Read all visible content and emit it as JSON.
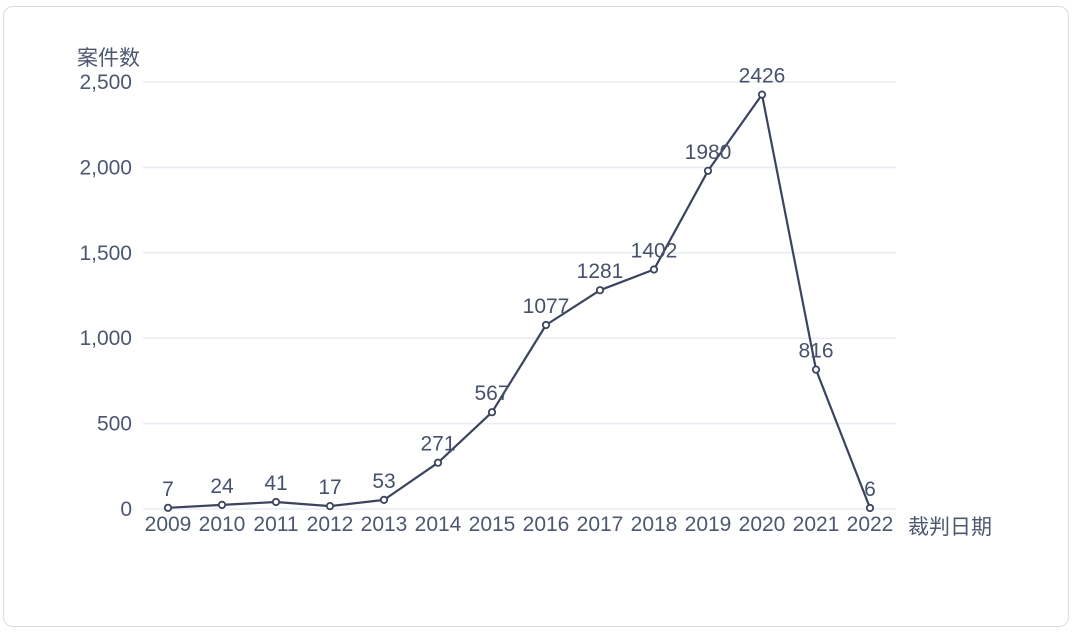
{
  "chart_data": {
    "type": "line",
    "title": "",
    "ylabel": "案件数",
    "xlabel": "裁判日期",
    "categories": [
      "2009",
      "2010",
      "2011",
      "2012",
      "2013",
      "2014",
      "2015",
      "2016",
      "2017",
      "2018",
      "2019",
      "2020",
      "2021",
      "2022"
    ],
    "values": [
      7,
      24,
      41,
      17,
      53,
      271,
      567,
      1077,
      1281,
      1402,
      1980,
      2426,
      816,
      6
    ],
    "data_labels": [
      "7",
      "24",
      "41",
      "17",
      "53",
      "271",
      "567",
      "1077",
      "1281",
      "1402",
      "1980",
      "2426",
      "816",
      "6"
    ],
    "ylim": [
      0,
      2500
    ],
    "ytick_values": [
      0,
      500,
      1000,
      1500,
      2000,
      2500
    ],
    "ytick_labels": [
      "0",
      "500",
      "1,000",
      "1,500",
      "2,000",
      "2,500"
    ],
    "grid": "horizontal",
    "legend": "none",
    "marker": "open-circle",
    "colors": {
      "line": "#3b445e",
      "marker_fill": "#ffffff",
      "data_label_text": "#47516b",
      "axis_text": "#4d5770",
      "gridline": "#e9edf3",
      "card_border": "#d9dde3",
      "background": "#ffffff"
    }
  }
}
